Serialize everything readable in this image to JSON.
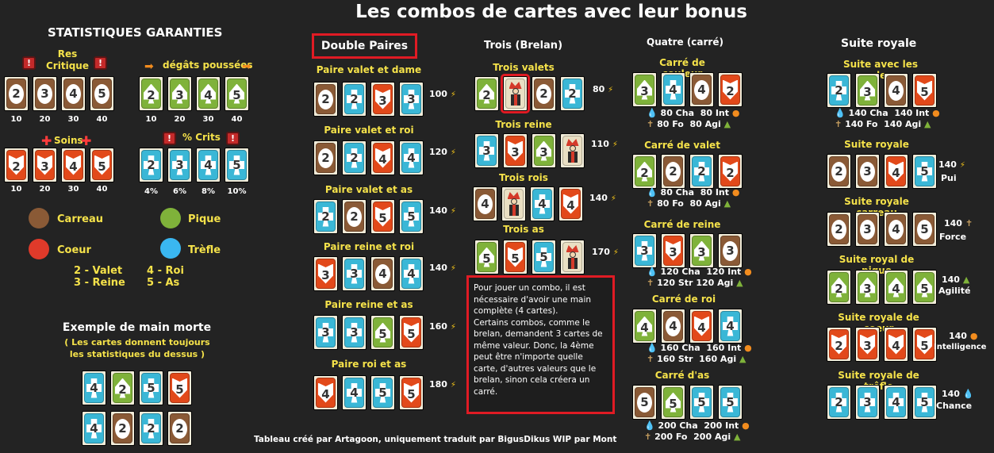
{
  "title": "Les combos de cartes avec leur bonus",
  "stats": {
    "heading": "STATISTIQUES GARANTIES",
    "res_label": "Res\nCritique",
    "degats_label": "dégâts poussées",
    "soins_label": "Soins",
    "crits_label": "% Crits",
    "res_values": [
      "10",
      "20",
      "30",
      "40"
    ],
    "degats_values": [
      "10",
      "20",
      "30",
      "40"
    ],
    "soins_values": [
      "10",
      "20",
      "30",
      "40"
    ],
    "crits_values": [
      "4%",
      "6%",
      "8%",
      "10%"
    ]
  },
  "legend": {
    "carreau": "Carreau",
    "pique": "Pique",
    "coeur": "Coeur",
    "trefle": "Trèfle",
    "v2": "2 - ",
    "l2": "Valet",
    "v3": "3 - ",
    "l3": "Reine",
    "v4": "4 - ",
    "l4": "Roi",
    "v5": "5 - ",
    "l5": "As",
    "colors": {
      "carreau": "#8a5a36",
      "pique": "#7fb23a",
      "coeur": "#e03a2a",
      "trefle": "#3ab7f0"
    }
  },
  "dead_hand": {
    "title": "Exemple de main morte",
    "note": "( Les cartes donnent toujours les statistiques du dessus )"
  },
  "double": {
    "heading": "Double Paires",
    "items": [
      {
        "label": "Paire valet et dame",
        "value": "100"
      },
      {
        "label": "Paire valet et roi",
        "value": "120"
      },
      {
        "label": "Paire valet et as",
        "value": "140"
      },
      {
        "label": "Paire reine et roi",
        "value": "140"
      },
      {
        "label": "Paire reine et as",
        "value": "160"
      },
      {
        "label": "Paire roi et as",
        "value": "180"
      }
    ]
  },
  "trois": {
    "heading": "Trois (Brelan)",
    "items": [
      {
        "label": "Trois valets",
        "value": "80"
      },
      {
        "label": "Trois reine",
        "value": "110"
      },
      {
        "label": "Trois rois",
        "value": "140"
      },
      {
        "label": "Trois as",
        "value": "170"
      }
    ]
  },
  "info": "Pour jouer un combo, il est nécessaire d'avoir une main complète (4 cartes).\nCertains combos, comme le brelan, demandent 3 cartes de même valeur. Donc, la 4ème peut être n'importe quelle carte, d'autres valeurs que le brelan, sinon cela créera un carré.",
  "quatre": {
    "heading": "Quatre (carré)",
    "items": [
      {
        "label": "Carré de couleur",
        "s1": "80 Cha",
        "s2": "80 Int",
        "s3": "80 Fo",
        "s4": "80 Agi"
      },
      {
        "label": "Carré de valet",
        "s1": "80 Cha",
        "s2": "80 Int",
        "s3": "80 Fo",
        "s4": "80 Agi"
      },
      {
        "label": "Carré de reine",
        "s1": "120 Cha",
        "s2": "120 Int",
        "s3": "120 Str",
        "s4": "120 Agi"
      },
      {
        "label": "Carré de roi",
        "s1": "160 Cha",
        "s2": "160 Int",
        "s3": "160 Str",
        "s4": "160 Agi"
      },
      {
        "label": "Carré d'as",
        "s1": "200 Cha",
        "s2": "200 Int",
        "s3": "200 Fo",
        "s4": "200 Agi"
      }
    ]
  },
  "suite": {
    "heading": "Suite royale",
    "items": [
      {
        "label": "Suite avec les couleurs",
        "s1": "140 Cha",
        "s2": "140 Int",
        "s3": "140 Fo",
        "s4": "140 Agi"
      },
      {
        "label": "Suite royale",
        "value": "140",
        "name": "Pui"
      },
      {
        "label": "Suite royale carreau",
        "value": "140",
        "name": "Force"
      },
      {
        "label": "Suite royal de pique",
        "value": "140",
        "name": "Agilité"
      },
      {
        "label": "Suite royale de coeur",
        "value": "140",
        "name": "Intelligence"
      },
      {
        "label": "Suite royale de trêfle",
        "value": "140",
        "name": "Chance"
      }
    ]
  },
  "credits": "Tableau créé par Artagoon, uniquement traduit par BigusDikus  WIP par Mont"
}
